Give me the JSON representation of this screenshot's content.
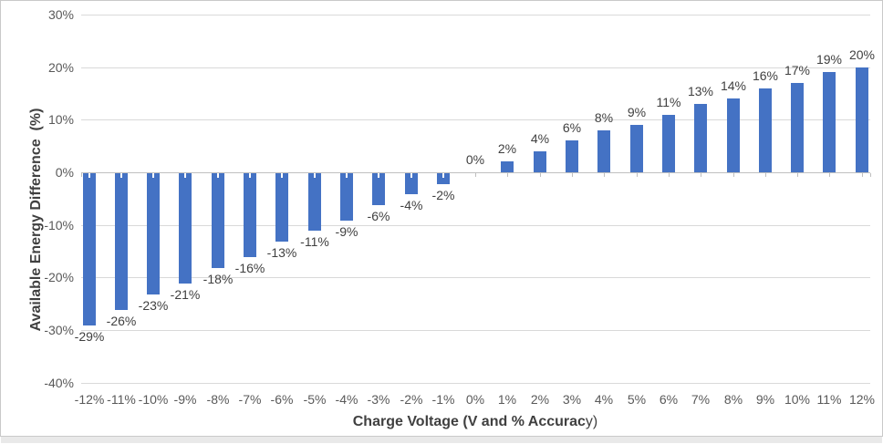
{
  "chart_data": {
    "type": "bar",
    "title": "",
    "xlabel": {
      "bold": "Charge Voltage (V and % Accurac",
      "tail": "y)",
      "full": "Charge Voltage (V and % Accuracy)"
    },
    "ylabel": "Available Energy Difference  (%)",
    "categories": [
      "-12%",
      "-11%",
      "-10%",
      "-9%",
      "-8%",
      "-7%",
      "-6%",
      "-5%",
      "-4%",
      "-3%",
      "-2%",
      "-1%",
      "0%",
      "1%",
      "2%",
      "3%",
      "4%",
      "5%",
      "6%",
      "7%",
      "8%",
      "9%",
      "10%",
      "11%",
      "12%"
    ],
    "values": [
      -29,
      -26,
      -23,
      -21,
      -18,
      -16,
      -13,
      -11,
      -9,
      -6,
      -4,
      -2,
      0,
      2,
      4,
      6,
      8,
      9,
      11,
      13,
      14,
      16,
      17,
      19,
      20
    ],
    "data_labels": [
      "-29%",
      "-26%",
      "-23%",
      "-21%",
      "-18%",
      "-16%",
      "-13%",
      "-11%",
      "-9%",
      "-6%",
      "-4%",
      "-2%",
      "0%",
      "2%",
      "4%",
      "6%",
      "8%",
      "9%",
      "11%",
      "13%",
      "14%",
      "16%",
      "17%",
      "19%",
      "20%"
    ],
    "yticks": [
      {
        "label": "30%",
        "value": 30
      },
      {
        "label": "20%",
        "value": 20
      },
      {
        "label": "10%",
        "value": 10
      },
      {
        "label": "0%",
        "value": 0
      },
      {
        "label": "-10%",
        "value": -10
      },
      {
        "label": "-20%",
        "value": -20
      },
      {
        "label": "-30%",
        "value": -30
      },
      {
        "label": "-40%",
        "value": -40
      }
    ],
    "ylim": [
      -40,
      30
    ],
    "grid": true,
    "legend": "none",
    "colors": {
      "bar": "#4472C4",
      "gridline": "#D9D9D9",
      "axis_line": "#BFBFBF",
      "tick_label": "#595959",
      "data_label": "#404040",
      "axis_title": "#404040",
      "border": "#C9C9C9",
      "bottom_strip": "#E9E9E9"
    }
  }
}
